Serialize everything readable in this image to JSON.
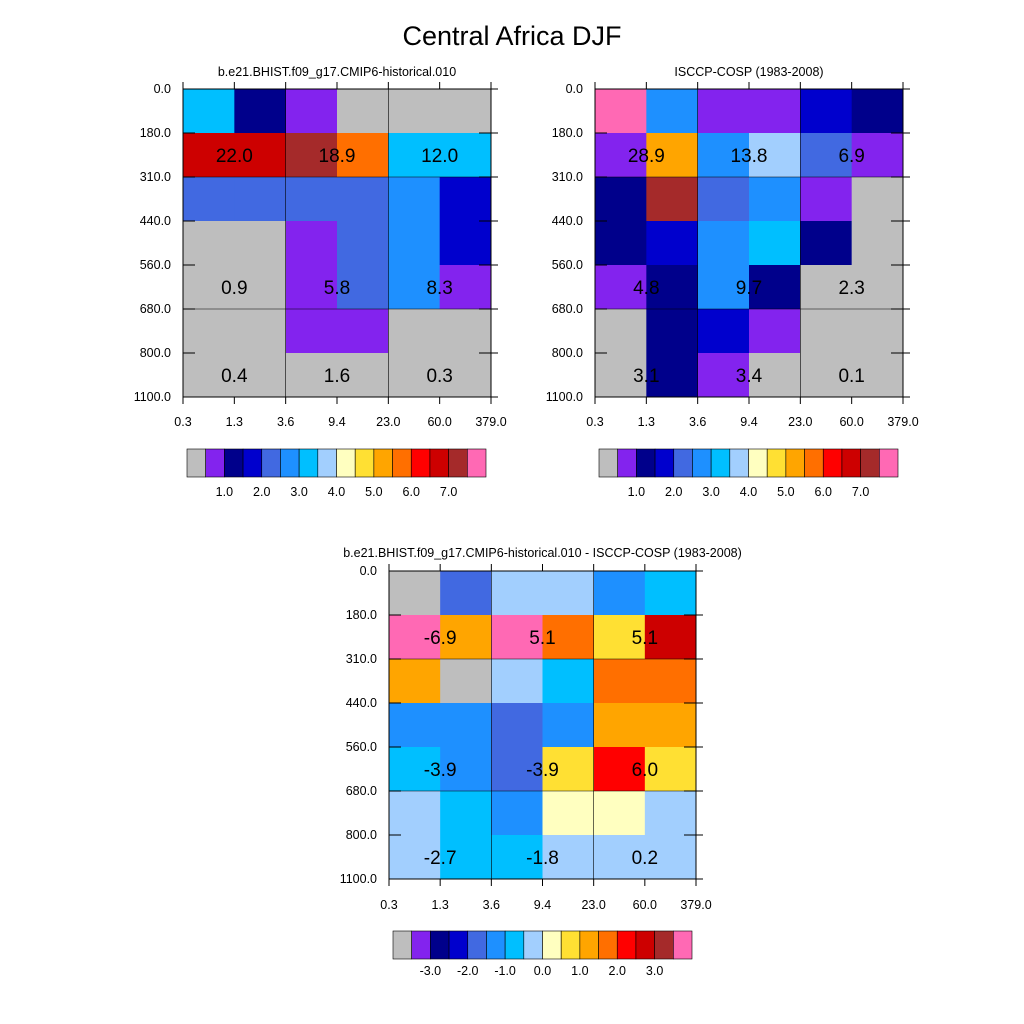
{
  "title": "Central Africa DJF",
  "x_tick_labels": [
    "0.3",
    "1.3",
    "3.6",
    "9.4",
    "23.0",
    "60.0",
    "379.0"
  ],
  "y_tick_labels": [
    "0.0",
    "180.0",
    "310.0",
    "440.0",
    "560.0",
    "680.0",
    "800.0",
    "1100.0"
  ],
  "colors": {
    "gray": "#bebebe",
    "purple": "#8323ee",
    "navy": "#00008b",
    "blue": "#0000cd",
    "royalblue": "#4169e1",
    "dodgerblue": "#1e90ff",
    "deepskyblue": "#00bfff",
    "lightblue": "#a2cffe",
    "lightyellow": "#ffffc0",
    "yellow": "#ffe033",
    "orange": "#ffa500",
    "darkorange": "#ff6f00",
    "red": "#ff0000",
    "darkred": "#cd0000",
    "brown": "#a52a2a",
    "pink": "#ff69b4"
  },
  "chart_data": [
    {
      "type": "heatmap",
      "title": "b.e21.BHIST.f09_g17.CMIP6-historical.010",
      "x_bins": [
        "0.3",
        "1.3",
        "3.6",
        "9.4",
        "23.0",
        "60.0",
        "379.0"
      ],
      "y_bins": [
        "0.0",
        "180.0",
        "310.0",
        "440.0",
        "560.0",
        "680.0",
        "800.0",
        "1100.0"
      ],
      "cells": [
        [
          "deepskyblue",
          "navy",
          "purple",
          "gray",
          "gray",
          "gray"
        ],
        [
          "darkred",
          "darkred",
          "brown",
          "darkorange",
          "deepskyblue",
          "deepskyblue"
        ],
        [
          "royalblue",
          "royalblue",
          "royalblue",
          "royalblue",
          "dodgerblue",
          "blue"
        ],
        [
          "gray",
          "gray",
          "purple",
          "royalblue",
          "dodgerblue",
          "blue"
        ],
        [
          "gray",
          "gray",
          "purple",
          "royalblue",
          "dodgerblue",
          "purple"
        ],
        [
          "gray",
          "gray",
          "purple",
          "purple",
          "gray",
          "gray"
        ],
        [
          "gray",
          "gray",
          "gray",
          "gray",
          "gray",
          "gray"
        ]
      ],
      "annotations": [
        {
          "text": "22.0",
          "col": 0,
          "row": 1
        },
        {
          "text": "18.9",
          "col": 2,
          "row": 1
        },
        {
          "text": "12.0",
          "col": 4,
          "row": 1
        },
        {
          "text": "0.9",
          "col": 0,
          "row": 4
        },
        {
          "text": "5.8",
          "col": 2,
          "row": 4
        },
        {
          "text": "8.3",
          "col": 4,
          "row": 4
        },
        {
          "text": "0.4",
          "col": 0,
          "row": 6
        },
        {
          "text": "1.6",
          "col": 2,
          "row": 6
        },
        {
          "text": "0.3",
          "col": 4,
          "row": 6
        }
      ],
      "colorbar": {
        "colors": [
          "gray",
          "purple",
          "navy",
          "blue",
          "royalblue",
          "dodgerblue",
          "deepskyblue",
          "lightblue",
          "lightyellow",
          "yellow",
          "orange",
          "darkorange",
          "red",
          "darkred",
          "brown",
          "pink"
        ],
        "labels": [
          "1.0",
          "2.0",
          "3.0",
          "4.0",
          "5.0",
          "6.0",
          "7.0"
        ]
      }
    },
    {
      "type": "heatmap",
      "title": "ISCCP-COSP (1983-2008)",
      "x_bins": [
        "0.3",
        "1.3",
        "3.6",
        "9.4",
        "23.0",
        "60.0",
        "379.0"
      ],
      "y_bins": [
        "0.0",
        "180.0",
        "310.0",
        "440.0",
        "560.0",
        "680.0",
        "800.0",
        "1100.0"
      ],
      "cells": [
        [
          "pink",
          "dodgerblue",
          "purple",
          "purple",
          "blue",
          "navy"
        ],
        [
          "purple",
          "orange",
          "dodgerblue",
          "lightblue",
          "royalblue",
          "purple"
        ],
        [
          "navy",
          "brown",
          "royalblue",
          "dodgerblue",
          "purple",
          "gray"
        ],
        [
          "navy",
          "blue",
          "dodgerblue",
          "deepskyblue",
          "navy",
          "gray"
        ],
        [
          "purple",
          "navy",
          "dodgerblue",
          "navy",
          "gray",
          "gray"
        ],
        [
          "gray",
          "navy",
          "blue",
          "purple",
          "gray",
          "gray"
        ],
        [
          "gray",
          "navy",
          "purple",
          "gray",
          "gray",
          "gray"
        ]
      ],
      "annotations": [
        {
          "text": "28.9",
          "col": 0,
          "row": 1
        },
        {
          "text": "13.8",
          "col": 2,
          "row": 1
        },
        {
          "text": "6.9",
          "col": 4,
          "row": 1
        },
        {
          "text": "4.8",
          "col": 0,
          "row": 4
        },
        {
          "text": "9.7",
          "col": 2,
          "row": 4
        },
        {
          "text": "2.3",
          "col": 4,
          "row": 4
        },
        {
          "text": "3.1",
          "col": 0,
          "row": 6
        },
        {
          "text": "3.4",
          "col": 2,
          "row": 6
        },
        {
          "text": "0.1",
          "col": 4,
          "row": 6
        }
      ],
      "colorbar": {
        "colors": [
          "gray",
          "purple",
          "navy",
          "blue",
          "royalblue",
          "dodgerblue",
          "deepskyblue",
          "lightblue",
          "lightyellow",
          "yellow",
          "orange",
          "darkorange",
          "red",
          "darkred",
          "brown",
          "pink"
        ],
        "labels": [
          "1.0",
          "2.0",
          "3.0",
          "4.0",
          "5.0",
          "6.0",
          "7.0"
        ]
      }
    },
    {
      "type": "heatmap",
      "title": "b.e21.BHIST.f09_g17.CMIP6-historical.010 - ISCCP-COSP (1983-2008)",
      "x_bins": [
        "0.3",
        "1.3",
        "3.6",
        "9.4",
        "23.0",
        "60.0",
        "379.0"
      ],
      "y_bins": [
        "0.0",
        "180.0",
        "310.0",
        "440.0",
        "560.0",
        "680.0",
        "800.0",
        "1100.0"
      ],
      "cells": [
        [
          "gray",
          "royalblue",
          "lightblue",
          "lightblue",
          "dodgerblue",
          "deepskyblue"
        ],
        [
          "pink",
          "orange",
          "pink",
          "darkorange",
          "yellow",
          "darkred"
        ],
        [
          "orange",
          "gray",
          "lightblue",
          "deepskyblue",
          "darkorange",
          "darkorange"
        ],
        [
          "dodgerblue",
          "dodgerblue",
          "royalblue",
          "dodgerblue",
          "orange",
          "orange"
        ],
        [
          "deepskyblue",
          "dodgerblue",
          "royalblue",
          "yellow",
          "red",
          "yellow"
        ],
        [
          "lightblue",
          "deepskyblue",
          "dodgerblue",
          "lightyellow",
          "lightyellow",
          "lightblue"
        ],
        [
          "lightblue",
          "deepskyblue",
          "deepskyblue",
          "lightblue",
          "lightblue",
          "lightblue"
        ]
      ],
      "annotations": [
        {
          "text": "-6.9",
          "col": 0,
          "row": 1
        },
        {
          "text": "5.1",
          "col": 2,
          "row": 1
        },
        {
          "text": "5.1",
          "col": 4,
          "row": 1
        },
        {
          "text": "-3.9",
          "col": 0,
          "row": 4
        },
        {
          "text": "-3.9",
          "col": 2,
          "row": 4
        },
        {
          "text": "6.0",
          "col": 4,
          "row": 4
        },
        {
          "text": "-2.7",
          "col": 0,
          "row": 6
        },
        {
          "text": "-1.8",
          "col": 2,
          "row": 6
        },
        {
          "text": "0.2",
          "col": 4,
          "row": 6
        }
      ],
      "colorbar": {
        "colors": [
          "gray",
          "purple",
          "navy",
          "blue",
          "royalblue",
          "dodgerblue",
          "deepskyblue",
          "lightblue",
          "lightyellow",
          "yellow",
          "orange",
          "darkorange",
          "red",
          "darkred",
          "brown",
          "pink"
        ],
        "labels": [
          "-3.0",
          "-2.0",
          "-1.0",
          "0.0",
          "1.0",
          "2.0",
          "3.0"
        ]
      }
    }
  ]
}
